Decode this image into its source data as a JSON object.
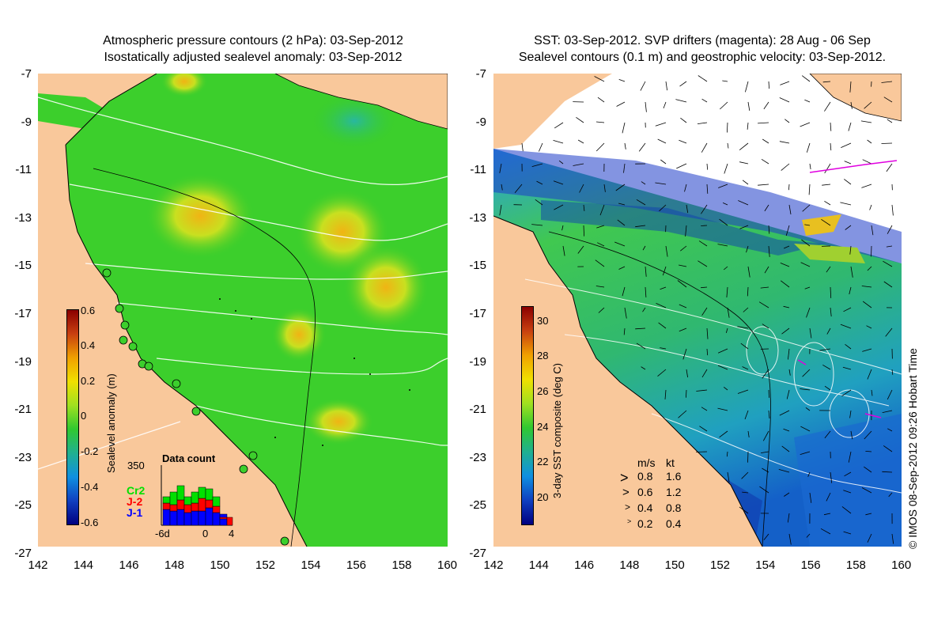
{
  "left_panel": {
    "title_line1": "Atmospheric pressure contours (2 hPa): 03-Sep-2012",
    "title_line2": "Isostatically adjusted sealevel anomaly: 03-Sep-2012",
    "colorbar": {
      "label": "Sealevel anomaly (m)",
      "ticks": [
        "0.6",
        "0.4",
        "0.2",
        "0",
        "-0.2",
        "-0.4",
        "-0.6"
      ]
    },
    "data_count": {
      "title": "Data count",
      "max_label": "350",
      "series": [
        "Cr2",
        "J-2",
        "J-1"
      ],
      "series_colors": [
        "#00e000",
        "#ff0000",
        "#0000ff"
      ],
      "x_ticks": [
        "-6d",
        "0",
        "4"
      ]
    }
  },
  "right_panel": {
    "title_line1": "SST: 03-Sep-2012. SVP drifters (magenta): 28 Aug - 06 Sep",
    "title_line2": "Sealevel contours (0.1 m) and geostrophic velocity: 03-Sep-2012.",
    "colorbar": {
      "label": "3-day SST composite (deg C)",
      "ticks": [
        "30",
        "28",
        "26",
        "24",
        "22",
        "20"
      ]
    },
    "velocity_legend": {
      "header_ms": "m/s",
      "header_kt": "kt",
      "rows": [
        {
          "ms": "0.8",
          "kt": "1.6"
        },
        {
          "ms": "0.6",
          "kt": "1.2"
        },
        {
          "ms": "0.4",
          "kt": "0.8"
        },
        {
          "ms": "0.2",
          "kt": "0.4"
        }
      ]
    }
  },
  "axes": {
    "y_ticks": [
      "-7",
      "-9",
      "-11",
      "-13",
      "-15",
      "-17",
      "-19",
      "-21",
      "-23",
      "-25",
      "-27"
    ],
    "x_ticks": [
      "142",
      "144",
      "146",
      "148",
      "150",
      "152",
      "154",
      "156",
      "158",
      "160"
    ]
  },
  "credit": "© IMOS 08-Sep-2012 09:26 Hobart Time",
  "colors": {
    "land": "#f9c89b",
    "sea_green": "#3ccf2c",
    "sea_blue": "#1e7fd8"
  }
}
